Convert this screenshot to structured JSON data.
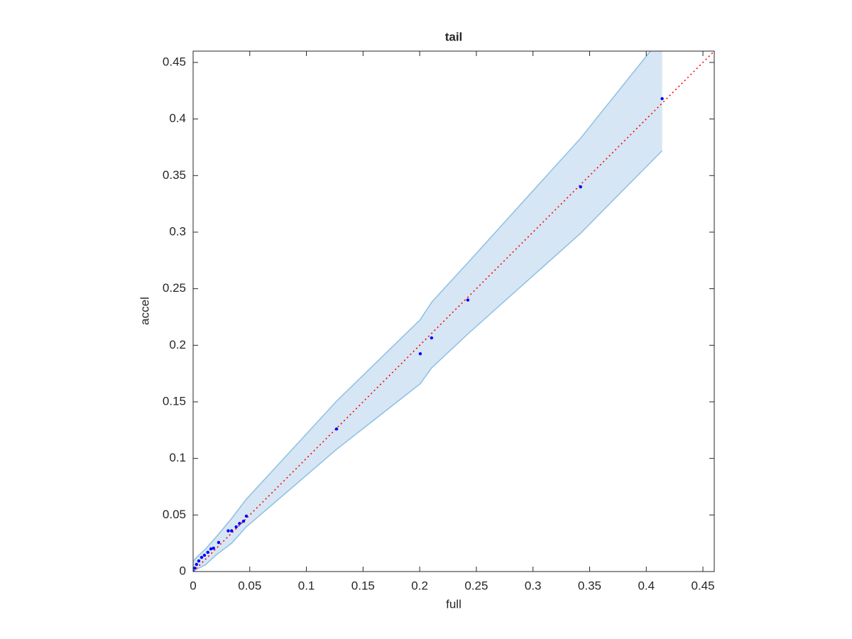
{
  "chart_data": {
    "type": "scatter",
    "title": "tail",
    "x_label": "full",
    "y_label": "accel",
    "x": [
      0.414,
      0.342,
      0.2425,
      0.2105,
      0.2005,
      0.1266,
      0.047,
      0.0445,
      0.041,
      0.038,
      0.034,
      0.031,
      0.0225,
      0.018,
      0.0157,
      0.013,
      0.01,
      0.0075,
      0.005,
      0.003,
      0.0013,
      0
    ],
    "values": [
      0.418,
      0.34,
      0.24,
      0.2065,
      0.1925,
      0.126,
      0.049,
      0.0445,
      0.0425,
      0.0395,
      0.036,
      0.036,
      0.0257,
      0.0207,
      0.02,
      0.017,
      0.0144,
      0.0125,
      0.0094,
      0.0063,
      0.003,
      0
    ],
    "color": "#0000ff",
    "band": {
      "x": [
        0,
        0.003,
        0.011,
        0.0207,
        0.034,
        0.047,
        0.1266,
        0.2005,
        0.2105,
        0.2425,
        0.342,
        0.414
      ],
      "upper": [
        0.009,
        0.0125,
        0.02,
        0.031,
        0.047,
        0.064,
        0.1506,
        0.2227,
        0.238,
        0.273,
        0.383,
        0.473
      ],
      "lower": [
        0,
        0.002,
        0.006,
        0.015,
        0.025,
        0.0395,
        0.108,
        0.166,
        0.18,
        0.21,
        0.299,
        0.372
      ],
      "fill": "#d6e6f4",
      "edge": "#8dc0e2"
    },
    "diagonal": true,
    "diagonal_color": "#ff0000",
    "xlim": [
      0,
      0.46
    ],
    "ylim": [
      0,
      0.46
    ],
    "xticks": [
      0,
      0.05,
      0.1,
      0.15,
      0.2,
      0.25,
      0.3,
      0.35,
      0.4,
      0.45
    ],
    "yticks": [
      0,
      0.05,
      0.1,
      0.15,
      0.2,
      0.25,
      0.3,
      0.35,
      0.4,
      0.45
    ],
    "grid": false
  }
}
